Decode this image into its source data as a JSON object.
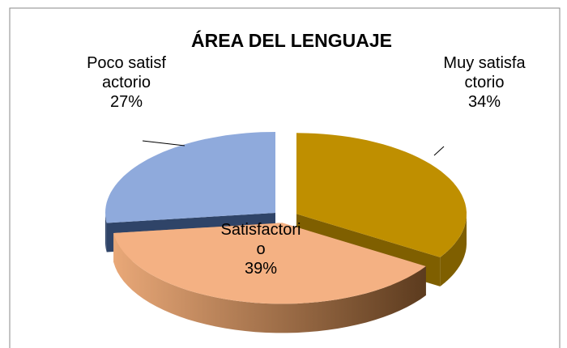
{
  "chart_data": {
    "type": "pie3d",
    "title": "ÁREA DEL LENGUAJE",
    "categories": [
      "Muy satisfactorio",
      "Satisfactorio",
      "Poco satisfactorio"
    ],
    "values": [
      34,
      39,
      27
    ],
    "value_labels": [
      "34%",
      "39%",
      "27%"
    ],
    "colors": [
      "#bf8f00",
      "#f4b183",
      "#8faadc"
    ]
  }
}
